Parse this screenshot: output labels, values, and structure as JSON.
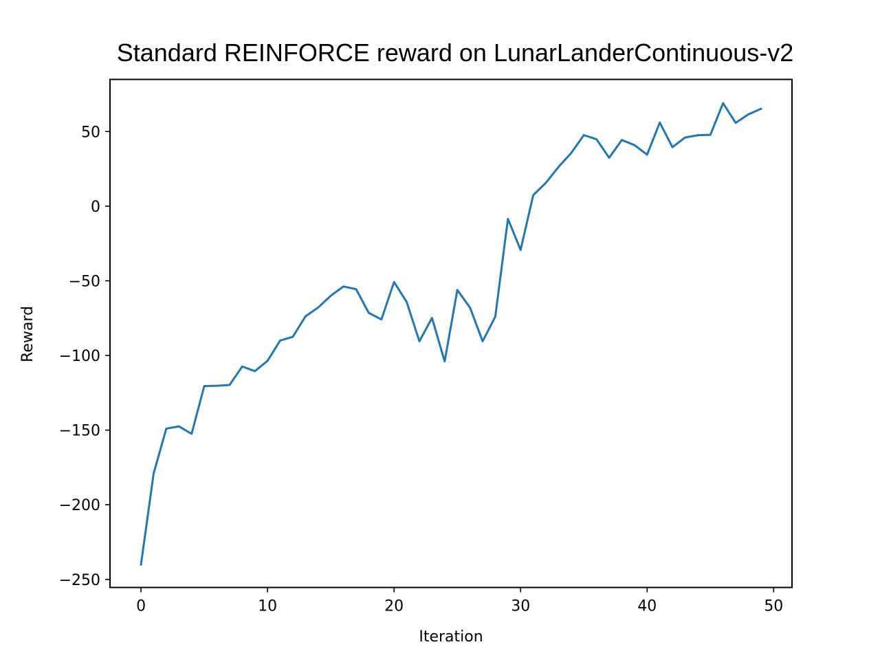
{
  "chart_data": {
    "type": "line",
    "title": "Standard REINFORCE reward on LunarLanderContinuous-v2",
    "xlabel": "Iteration",
    "ylabel": "Reward",
    "xlim": [
      -2.45,
      51.45
    ],
    "ylim": [
      -255.4,
      84.9
    ],
    "x_ticks": [
      0,
      10,
      20,
      30,
      40,
      50
    ],
    "y_ticks": [
      -250,
      -200,
      -150,
      -100,
      -50,
      0,
      50
    ],
    "x_tick_labels": [
      "0",
      "10",
      "20",
      "30",
      "40",
      "50"
    ],
    "y_tick_labels": [
      "−250",
      "−200",
      "−150",
      "−100",
      "−50",
      "0",
      "50"
    ],
    "grid": false,
    "legend": "none",
    "series": [
      {
        "color": "#1f77b4",
        "x": [
          0,
          1,
          2,
          3,
          4,
          5,
          6,
          7,
          8,
          9,
          10,
          11,
          12,
          13,
          14,
          15,
          16,
          17,
          18,
          19,
          20,
          21,
          22,
          23,
          24,
          25,
          26,
          27,
          28,
          29,
          30,
          31,
          32,
          33,
          34,
          35,
          36,
          37,
          38,
          39,
          40,
          41,
          42,
          43,
          44,
          45,
          46,
          47,
          48,
          49
        ],
        "values": [
          -240,
          -179,
          -149,
          -147.5,
          -152.5,
          -120.5,
          -120.3,
          -119.8,
          -107.4,
          -110.5,
          -103.6,
          -90,
          -87.5,
          -73.8,
          -67.9,
          -60,
          -53.8,
          -55.6,
          -71.5,
          -75.9,
          -50.8,
          -64.2,
          -90.5,
          -74.9,
          -104,
          -56.1,
          -67.9,
          -90.5,
          -74,
          -8.5,
          -29.3,
          7.4,
          15.7,
          26.3,
          35.6,
          47.6,
          44.8,
          32.4,
          44.3,
          40.9,
          34.5,
          56,
          39.5,
          46,
          47.5,
          47.8,
          69,
          55.8,
          61.5,
          65.2
        ]
      }
    ]
  }
}
